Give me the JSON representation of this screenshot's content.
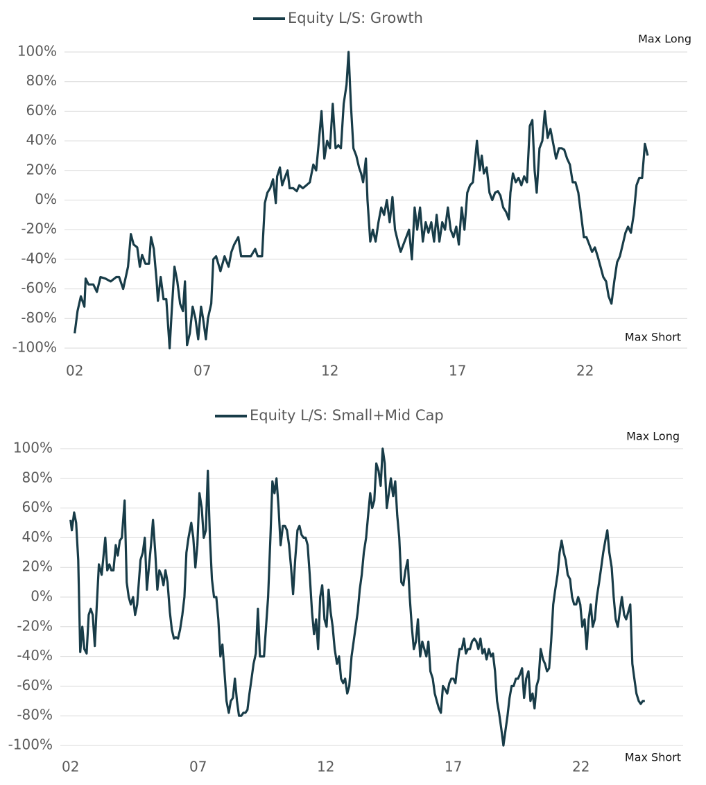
{
  "chart_data": [
    {
      "type": "line",
      "x": [
        2002.0,
        2002.11,
        2002.24,
        2002.38,
        2002.43,
        2002.54,
        2002.73,
        2002.87,
        2003.01,
        2003.2,
        2003.41,
        2003.63,
        2003.74,
        2003.9,
        2004.09,
        2004.2,
        2004.31,
        2004.45,
        2004.55,
        2004.64,
        2004.77,
        2004.91,
        2004.99,
        2005.1,
        2005.21,
        2005.26,
        2005.37,
        2005.48,
        2005.59,
        2005.72,
        2005.8,
        2005.91,
        2006.02,
        2006.13,
        2006.24,
        2006.32,
        2006.4,
        2006.51,
        2006.62,
        2006.73,
        2006.84,
        2006.95,
        2007.03,
        2007.14,
        2007.22,
        2007.35,
        2007.43,
        2007.54,
        2007.71,
        2007.87,
        2008.03,
        2008.14,
        2008.25,
        2008.41,
        2008.52,
        2008.71,
        2008.9,
        2009.07,
        2009.17,
        2009.34,
        2009.45,
        2009.55,
        2009.66,
        2009.77,
        2009.88,
        2009.93,
        2010.04,
        2010.13,
        2010.23,
        2010.34,
        2010.42,
        2010.56,
        2010.7,
        2010.8,
        2010.94,
        2011.08,
        2011.21,
        2011.35,
        2011.46,
        2011.57,
        2011.67,
        2011.78,
        2011.89,
        2012.0,
        2012.11,
        2012.22,
        2012.33,
        2012.43,
        2012.54,
        2012.65,
        2012.73,
        2012.82,
        2012.92,
        2013.03,
        2013.14,
        2013.22,
        2013.3,
        2013.41,
        2013.47,
        2013.58,
        2013.68,
        2013.79,
        2013.9,
        2014.01,
        2014.12,
        2014.23,
        2014.34,
        2014.45,
        2014.55,
        2014.66,
        2014.77,
        2014.88,
        2014.99,
        2015.1,
        2015.21,
        2015.32,
        2015.42,
        2015.53,
        2015.64,
        2015.75,
        2015.86,
        2015.97,
        2016.08,
        2016.18,
        2016.29,
        2016.4,
        2016.51,
        2016.62,
        2016.73,
        2016.84,
        2016.95,
        2017.05,
        2017.16,
        2017.27,
        2017.38,
        2017.49,
        2017.6,
        2017.76,
        2017.87,
        2017.95,
        2018.03,
        2018.14,
        2018.25,
        2018.36,
        2018.47,
        2018.58,
        2018.68,
        2018.79,
        2018.9,
        2019.01,
        2019.07,
        2019.17,
        2019.28,
        2019.39,
        2019.5,
        2019.61,
        2019.72,
        2019.83,
        2019.93,
        2020.02,
        2020.1,
        2020.21,
        2020.32,
        2020.42,
        2020.53,
        2020.64,
        2020.75,
        2020.86,
        2020.97,
        2021.08,
        2021.18,
        2021.29,
        2021.4,
        2021.51,
        2021.62,
        2021.73,
        2021.84,
        2021.95,
        2022.05,
        2022.16,
        2022.27,
        2022.38,
        2022.49,
        2022.6,
        2022.71,
        2022.82,
        2022.92,
        2023.03,
        2023.14,
        2023.25,
        2023.36,
        2023.47,
        2023.58,
        2023.68,
        2023.79,
        2023.9,
        2024.01,
        2024.12,
        2024.23,
        2024.34,
        2024.45
      ],
      "series": [
        {
          "name": "Equity L/S: Growth",
          "color": "#183c48",
          "values": [
            -90,
            -75,
            -65,
            -72,
            -53,
            -57,
            -57,
            -62,
            -52,
            -53,
            -55,
            -52,
            -52,
            -60,
            -45,
            -23,
            -30,
            -32,
            -45,
            -37,
            -43,
            -43,
            -25,
            -33,
            -55,
            -68,
            -52,
            -67,
            -67,
            -100,
            -75,
            -45,
            -55,
            -70,
            -75,
            -55,
            -98,
            -90,
            -72,
            -80,
            -94,
            -72,
            -80,
            -94,
            -80,
            -70,
            -40,
            -38,
            -48,
            -38,
            -45,
            -35,
            -30,
            -25,
            -38,
            -38,
            -38,
            -33,
            -38,
            -38,
            -2,
            5,
            8,
            14,
            -2,
            16,
            22,
            10,
            15,
            20,
            8,
            8,
            6,
            10,
            8,
            10,
            12,
            24,
            20,
            40,
            60,
            28,
            40,
            35,
            65,
            35,
            37,
            35,
            65,
            78,
            100,
            65,
            35,
            30,
            22,
            18,
            12,
            28,
            0,
            -28,
            -20,
            -28,
            -15,
            -5,
            -10,
            0,
            -15,
            2,
            -20,
            -28,
            -35,
            -30,
            -25,
            -20,
            -40,
            -5,
            -20,
            -5,
            -28,
            -15,
            -22,
            -15,
            -28,
            -10,
            -28,
            -15,
            -20,
            -5,
            -20,
            -25,
            -18,
            -30,
            -5,
            -20,
            5,
            10,
            12,
            40,
            20,
            30,
            18,
            22,
            5,
            0,
            5,
            6,
            3,
            -5,
            -8,
            -13,
            5,
            18,
            12,
            15,
            10,
            16,
            12,
            50,
            54,
            20,
            5,
            35,
            40,
            60,
            42,
            48,
            38,
            28,
            35,
            35,
            34,
            28,
            24,
            12,
            12,
            5,
            -10,
            -25,
            -25,
            -30,
            -35,
            -32,
            -38,
            -45,
            -52,
            -55,
            -65,
            -70,
            -55,
            -42,
            -38,
            -30,
            -22,
            -18,
            -22,
            -10,
            10,
            15,
            15,
            38,
            30
          ]
        }
      ],
      "xlim": [
        2001.6,
        2026
      ],
      "xticks": [
        {
          "value": 2002,
          "label": "02"
        },
        {
          "value": 2007,
          "label": "07"
        },
        {
          "value": 2012,
          "label": "12"
        },
        {
          "value": 2017,
          "label": "17"
        },
        {
          "value": 2022,
          "label": "22"
        }
      ],
      "ylim": [
        -100,
        100
      ],
      "yticks": [
        {
          "value": -100,
          "label": "-100%"
        },
        {
          "value": -80,
          "label": "-80%"
        },
        {
          "value": -60,
          "label": "-60%"
        },
        {
          "value": -40,
          "label": "-40%"
        },
        {
          "value": -20,
          "label": "-20%"
        },
        {
          "value": 0,
          "label": "0%"
        },
        {
          "value": 20,
          "label": "20%"
        },
        {
          "value": 40,
          "label": "40%"
        },
        {
          "value": 60,
          "label": "60%"
        },
        {
          "value": 80,
          "label": "80%"
        },
        {
          "value": 100,
          "label": "100%"
        }
      ],
      "grid": true,
      "annotations": [
        "Max Long",
        "Max Short"
      ]
    },
    {
      "type": "line",
      "x": [
        2002.0,
        2002.05,
        2002.14,
        2002.22,
        2002.3,
        2002.38,
        2002.46,
        2002.54,
        2002.63,
        2002.71,
        2002.79,
        2002.87,
        2002.95,
        2003.03,
        2003.11,
        2003.22,
        2003.36,
        2003.44,
        2003.52,
        2003.6,
        2003.68,
        2003.77,
        2003.85,
        2003.93,
        2004.01,
        2004.12,
        2004.2,
        2004.28,
        2004.36,
        2004.45,
        2004.53,
        2004.61,
        2004.74,
        2004.83,
        2004.91,
        2004.99,
        2005.07,
        2005.15,
        2005.23,
        2005.32,
        2005.4,
        2005.48,
        2005.56,
        2005.64,
        2005.72,
        2005.8,
        2005.89,
        2005.97,
        2006.05,
        2006.13,
        2006.21,
        2006.29,
        2006.38,
        2006.46,
        2006.54,
        2006.62,
        2006.73,
        2006.81,
        2006.89,
        2006.97,
        2007.05,
        2007.14,
        2007.22,
        2007.3,
        2007.38,
        2007.46,
        2007.54,
        2007.62,
        2007.71,
        2007.79,
        2007.87,
        2007.95,
        2008.03,
        2008.11,
        2008.2,
        2008.28,
        2008.36,
        2008.44,
        2008.52,
        2008.6,
        2008.69,
        2008.77,
        2008.85,
        2008.93,
        2009.01,
        2009.09,
        2009.17,
        2009.26,
        2009.34,
        2009.42,
        2009.5,
        2009.58,
        2009.66,
        2009.74,
        2009.83,
        2009.91,
        2009.99,
        2010.07,
        2010.15,
        2010.23,
        2010.32,
        2010.4,
        2010.48,
        2010.56,
        2010.64,
        2010.72,
        2010.8,
        2010.89,
        2010.97,
        2011.05,
        2011.13,
        2011.21,
        2011.29,
        2011.37,
        2011.46,
        2011.54,
        2011.62,
        2011.7,
        2011.78,
        2011.86,
        2011.95,
        2012.03,
        2012.11,
        2012.19,
        2012.27,
        2012.35,
        2012.44,
        2012.52,
        2012.6,
        2012.68,
        2012.76,
        2012.84,
        2012.92,
        2013.01,
        2013.09,
        2013.17,
        2013.25,
        2013.33,
        2013.41,
        2013.49,
        2013.58,
        2013.66,
        2013.74,
        2013.82,
        2013.9,
        2013.98,
        2014.07,
        2014.15,
        2014.23,
        2014.31,
        2014.39,
        2014.47,
        2014.55,
        2014.64,
        2014.72,
        2014.8,
        2014.88,
        2014.96,
        2015.04,
        2015.12,
        2015.21,
        2015.29,
        2015.37,
        2015.45,
        2015.53,
        2015.61,
        2015.7,
        2015.78,
        2015.86,
        2015.94,
        2016.02,
        2016.1,
        2016.19,
        2016.27,
        2016.35,
        2016.43,
        2016.51,
        2016.59,
        2016.67,
        2016.76,
        2016.84,
        2016.92,
        2017.0,
        2017.08,
        2017.16,
        2017.24,
        2017.33,
        2017.41,
        2017.49,
        2017.57,
        2017.65,
        2017.73,
        2017.82,
        2017.9,
        2017.98,
        2018.06,
        2018.14,
        2018.22,
        2018.3,
        2018.39,
        2018.47,
        2018.55,
        2018.63,
        2018.71,
        2018.79,
        2018.87,
        2018.96,
        2019.04,
        2019.12,
        2019.2,
        2019.28,
        2019.36,
        2019.45,
        2019.53,
        2019.61,
        2019.69,
        2019.77,
        2019.85,
        2019.94,
        2020.02,
        2020.1,
        2020.18,
        2020.26,
        2020.34,
        2020.42,
        2020.51,
        2020.59,
        2020.67,
        2020.75,
        2020.83,
        2020.91,
        2020.99,
        2021.08,
        2021.16,
        2021.24,
        2021.32,
        2021.4,
        2021.48,
        2021.57,
        2021.65,
        2021.73,
        2021.81,
        2021.89,
        2021.97,
        2022.05,
        2022.14,
        2022.22,
        2022.3,
        2022.38,
        2022.46,
        2022.54,
        2022.62,
        2022.71,
        2022.79,
        2022.87,
        2022.95,
        2023.03,
        2023.11,
        2023.2,
        2023.28,
        2023.36,
        2023.44,
        2023.52,
        2023.6,
        2023.69,
        2023.77,
        2023.85,
        2023.93,
        2024.01,
        2024.09,
        2024.17,
        2024.26,
        2024.34,
        2024.42,
        2024.5
      ],
      "series": [
        {
          "name": "Equity L/S: Small+Mid Cap",
          "color": "#183c48",
          "values": [
            52,
            45,
            57,
            50,
            25,
            -37,
            -20,
            -35,
            -38,
            -12,
            -8,
            -12,
            -33,
            -5,
            22,
            15,
            40,
            18,
            22,
            18,
            18,
            35,
            28,
            38,
            40,
            65,
            10,
            0,
            -5,
            0,
            -12,
            -5,
            25,
            30,
            40,
            5,
            20,
            35,
            52,
            30,
            5,
            18,
            15,
            8,
            18,
            10,
            -10,
            -22,
            -28,
            -27,
            -28,
            -22,
            -12,
            0,
            30,
            40,
            50,
            40,
            20,
            35,
            70,
            60,
            40,
            45,
            85,
            40,
            12,
            0,
            0,
            -15,
            -40,
            -32,
            -50,
            -70,
            -78,
            -70,
            -68,
            -55,
            -70,
            -80,
            -80,
            -78,
            -78,
            -76,
            -65,
            -55,
            -45,
            -38,
            -8,
            -40,
            -40,
            -40,
            -20,
            0,
            40,
            78,
            70,
            80,
            60,
            35,
            48,
            48,
            45,
            35,
            20,
            2,
            25,
            45,
            48,
            42,
            40,
            40,
            35,
            15,
            -10,
            -25,
            -15,
            -35,
            0,
            8,
            -15,
            -20,
            5,
            -10,
            -20,
            -35,
            -45,
            -40,
            -55,
            -58,
            -55,
            -65,
            -60,
            -40,
            -30,
            -20,
            -10,
            5,
            15,
            30,
            40,
            55,
            70,
            60,
            65,
            90,
            85,
            75,
            100,
            90,
            60,
            70,
            80,
            68,
            78,
            55,
            40,
            10,
            8,
            18,
            25,
            0,
            -20,
            -35,
            -30,
            -15,
            -40,
            -30,
            -35,
            -40,
            -30,
            -50,
            -55,
            -65,
            -70,
            -75,
            -78,
            -60,
            -62,
            -65,
            -58,
            -55,
            -55,
            -58,
            -45,
            -35,
            -35,
            -28,
            -38,
            -35,
            -35,
            -30,
            -28,
            -30,
            -35,
            -28,
            -38,
            -35,
            -42,
            -35,
            -40,
            -38,
            -50,
            -70,
            -78,
            -88,
            -100,
            -90,
            -80,
            -68,
            -60,
            -60,
            -55,
            -55,
            -52,
            -48,
            -68,
            -55,
            -50,
            -70,
            -65,
            -75,
            -60,
            -55,
            -35,
            -42,
            -45,
            -50,
            -48,
            -30,
            -5,
            5,
            15,
            30,
            38,
            30,
            25,
            15,
            12,
            0,
            -5,
            -5,
            0,
            -5,
            -20,
            -15,
            -35,
            -15,
            -5,
            -20,
            -15,
            0,
            10,
            20,
            30,
            38,
            45,
            30,
            20,
            0,
            -15,
            -20,
            -10,
            0,
            -12,
            -15,
            -10,
            -5,
            -45,
            -55,
            -65,
            -70,
            -72,
            -70,
            -70
          ]
        }
      ],
      "xlim": [
        2001.6,
        2026
      ],
      "xticks": [
        {
          "value": 2002,
          "label": "02"
        },
        {
          "value": 2007,
          "label": "07"
        },
        {
          "value": 2012,
          "label": "12"
        },
        {
          "value": 2017,
          "label": "17"
        },
        {
          "value": 2022,
          "label": "22"
        }
      ],
      "ylim": [
        -100,
        100
      ],
      "yticks": [
        {
          "value": -100,
          "label": "-100%"
        },
        {
          "value": -80,
          "label": "-80%"
        },
        {
          "value": -60,
          "label": "-60%"
        },
        {
          "value": -40,
          "label": "-40%"
        },
        {
          "value": -20,
          "label": "-20%"
        },
        {
          "value": 0,
          "label": "0%"
        },
        {
          "value": 20,
          "label": "20%"
        },
        {
          "value": 40,
          "label": "40%"
        },
        {
          "value": 60,
          "label": "60%"
        },
        {
          "value": 80,
          "label": "80%"
        },
        {
          "value": 100,
          "label": "100%"
        }
      ],
      "grid": true,
      "annotations": [
        "Max Long",
        "Max Short"
      ]
    }
  ]
}
